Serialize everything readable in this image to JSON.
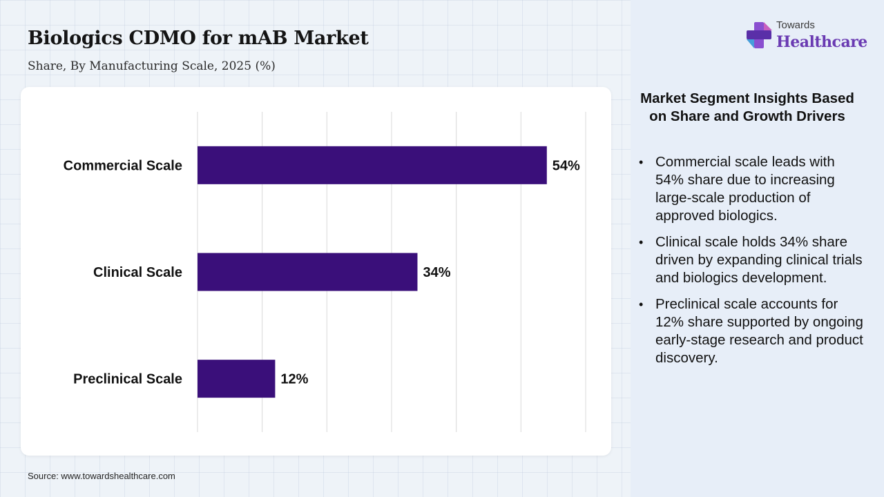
{
  "header": {
    "title": "Biologics CDMO for mAB Market",
    "subtitle": "Share, By Manufacturing Scale, 2025 (%)"
  },
  "logo": {
    "line1": "Towards",
    "line2": "Healthcare"
  },
  "footer": {
    "source": "Source: www.towardshealthcare.com"
  },
  "insights": {
    "title": "Market Segment Insights Based on Share and Growth Drivers",
    "items": [
      "Commercial scale leads with 54% share due to increasing large-scale production of approved biologics.",
      "Clinical scale holds 34% share driven by expanding clinical trials and biologics development.",
      "Preclinical scale accounts for 12% share supported by ongoing early-stage research and product discovery."
    ]
  },
  "colors": {
    "bar": "#3a0f7a",
    "gridline": "#d9d9d9",
    "brand_purple": "#6a3ab2"
  },
  "chart_data": {
    "type": "bar",
    "orientation": "horizontal",
    "title": "Biologics CDMO for mAB Market",
    "subtitle": "Share, By Manufacturing Scale, 2025 (%)",
    "categories": [
      "Commercial Scale",
      "Clinical Scale",
      "Preclinical Scale"
    ],
    "values": [
      54,
      34,
      12
    ],
    "data_labels": [
      "54%",
      "34%",
      "12%"
    ],
    "xlim": [
      0,
      60
    ],
    "grid": true,
    "legend": "none"
  }
}
